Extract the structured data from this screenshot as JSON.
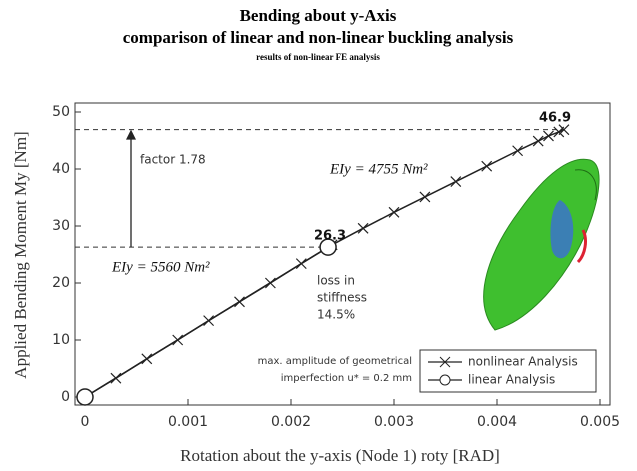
{
  "chart_data": {
    "type": "line",
    "title": "Bending about y-Axis",
    "subtitle": "comparison of linear and non-linear buckling analysis",
    "note": "results of non-linear FE analysis",
    "xlabel": "Rotation about the y-axis (Node 1)   roty   [RAD]",
    "ylabel": "Applied Bending Moment   My   [Nm]",
    "xlim": [
      0,
      0.005
    ],
    "xticks": [
      0,
      0.001,
      0.002,
      0.003,
      0.004,
      0.005
    ],
    "ylim": [
      0,
      50
    ],
    "yticks": [
      0,
      10,
      20,
      30,
      40,
      50
    ],
    "legend": "lower right",
    "series": [
      {
        "name": "nonlinear Analysis",
        "color": "#222",
        "marker": "x",
        "x": [
          0,
          0.0003,
          0.0006,
          0.0009,
          0.0012,
          0.0015,
          0.0018,
          0.0021,
          0.0024,
          0.0027,
          0.003,
          0.0033,
          0.0036,
          0.0039,
          0.0042,
          0.0044,
          0.0045,
          0.0046,
          0.00465
        ],
        "values": [
          0,
          3.3,
          6.7,
          10,
          13.4,
          16.7,
          20,
          23.4,
          26.7,
          29.6,
          32.4,
          35.1,
          37.8,
          40.5,
          43.2,
          44.9,
          45.8,
          46.5,
          46.9
        ]
      },
      {
        "name": "linear Analysis",
        "color": "#222",
        "marker": "o",
        "x": [
          0,
          0.00236
        ],
        "values": [
          0,
          26.3
        ]
      }
    ],
    "annotations": [
      "46.9",
      "26.3",
      "factor 1.78",
      "EIy = 4755 Nm²",
      "EIy = 5560 Nm²",
      "loss in",
      "stiffness",
      "14.5%",
      "max. amplitude of geometrical",
      "imperfection u* = 0.2 mm"
    ]
  }
}
